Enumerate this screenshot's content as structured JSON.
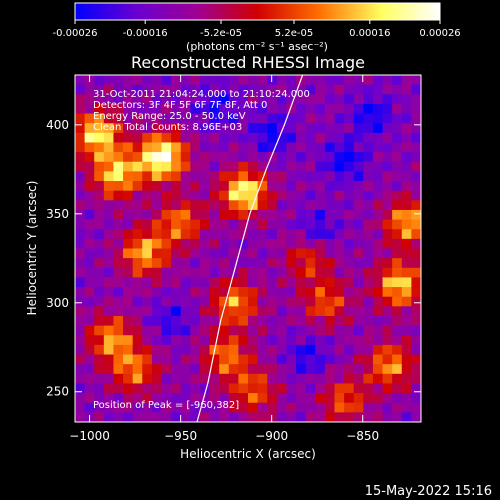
{
  "footer_timestamp": "15-May-2022 15:16",
  "colorbar": {
    "tick_labels": [
      "-0.00026",
      "-0.00016",
      "-5.2e-05",
      "5.2e-05",
      "0.00016",
      "0.00026"
    ],
    "tick_values": [
      -0.00026,
      -0.00016,
      -5.2e-05,
      5.2e-05,
      0.00016,
      0.00026
    ],
    "range": [
      -0.00026,
      0.00026
    ],
    "units_label": "(photons cm⁻² s⁻¹ asec⁻²)",
    "colormap": [
      "#0000ff",
      "#6a00d0",
      "#a00090",
      "#d00000",
      "#ff7000",
      "#ffff60",
      "#ffffff"
    ]
  },
  "chart_data": {
    "type": "heatmap",
    "title": "Reconstructed RHESSI Image",
    "xlabel": "Heliocentric X (arcsec)",
    "ylabel": "Heliocentric Y (arcsec)",
    "xlim": [
      -1008,
      -818
    ],
    "ylim": [
      233,
      428
    ],
    "x_tick_labels": [
      "−1000",
      "−950",
      "−900",
      "−850"
    ],
    "x_tick_values": [
      -1000,
      -950,
      -900,
      -850
    ],
    "y_tick_labels": [
      "250",
      "300",
      "350",
      "400"
    ],
    "y_tick_values": [
      250,
      300,
      350,
      400
    ],
    "annotations": [
      "31-Oct-2011 21:04:24.000 to 21:10:24.000",
      "Detectors: 3F 4F 5F 6F 7F 8F, Att 0",
      "Energy Range: 25.0 - 50.0 keV",
      "Clean    Total Counts: 8.96E+03"
    ],
    "peak_label": "Position of Peak = [-960,382]",
    "limb_color": "#ffffff",
    "limb_points": [
      [
        -941,
        233
      ],
      [
        -935,
        255
      ],
      [
        -928,
        290
      ],
      [
        -920,
        320
      ],
      [
        -912,
        350
      ],
      [
        -903,
        375
      ],
      [
        -893,
        400
      ],
      [
        -883,
        428
      ]
    ],
    "hot_spots": [
      {
        "x": -996,
        "y": 395,
        "amp": 1.3
      },
      {
        "x": -985,
        "y": 372,
        "amp": 1.2
      },
      {
        "x": -970,
        "y": 328,
        "amp": 1.1
      },
      {
        "x": -988,
        "y": 280,
        "amp": 1.0
      },
      {
        "x": -975,
        "y": 262,
        "amp": 0.9
      },
      {
        "x": -960,
        "y": 382,
        "amp": 1.6
      },
      {
        "x": -915,
        "y": 362,
        "amp": 1.4
      },
      {
        "x": -920,
        "y": 300,
        "amp": 1.0
      },
      {
        "x": -910,
        "y": 250,
        "amp": 0.8
      },
      {
        "x": -925,
        "y": 270,
        "amp": 0.9
      },
      {
        "x": -950,
        "y": 345,
        "amp": 0.9
      },
      {
        "x": -830,
        "y": 310,
        "amp": 1.2
      },
      {
        "x": -835,
        "y": 265,
        "amp": 1.0
      },
      {
        "x": -825,
        "y": 345,
        "amp": 1.1
      },
      {
        "x": -870,
        "y": 300,
        "amp": 0.8
      },
      {
        "x": -860,
        "y": 245,
        "amp": 0.8
      },
      {
        "x": -880,
        "y": 325,
        "amp": 0.7
      }
    ],
    "cold_spots": [
      {
        "x": -900,
        "y": 395,
        "amp": 1.0
      },
      {
        "x": -860,
        "y": 380,
        "amp": 1.1
      },
      {
        "x": -845,
        "y": 405,
        "amp": 1.0
      },
      {
        "x": -875,
        "y": 340,
        "amp": 0.9
      },
      {
        "x": -880,
        "y": 270,
        "amp": 0.8
      },
      {
        "x": -955,
        "y": 290,
        "amp": 0.7
      },
      {
        "x": -930,
        "y": 410,
        "amp": 0.8
      }
    ]
  }
}
